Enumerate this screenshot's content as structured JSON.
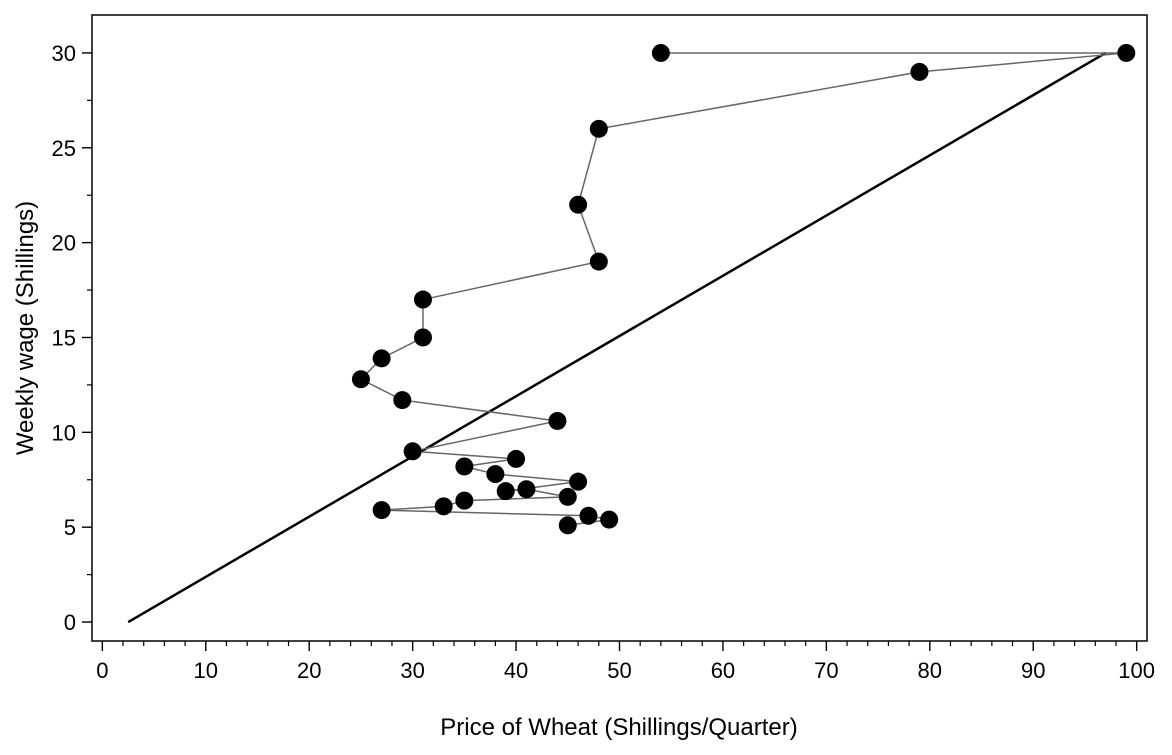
{
  "chart_data": {
    "type": "scatter",
    "xlabel": "Price of Wheat (Shillings/Quarter)",
    "ylabel": "Weekly wage (Shillings)",
    "xlim": [
      -1,
      101
    ],
    "ylim": [
      -1,
      32
    ],
    "x_ticks": [
      0,
      10,
      20,
      30,
      40,
      50,
      60,
      70,
      80,
      90,
      100
    ],
    "y_ticks": [
      0,
      5,
      10,
      15,
      20,
      25,
      30
    ],
    "x_minor_step": 2,
    "y_minor_step": 2.5,
    "grid": false,
    "points": [
      {
        "x": 45,
        "y": 5.1
      },
      {
        "x": 49,
        "y": 5.4
      },
      {
        "x": 47,
        "y": 5.6
      },
      {
        "x": 27,
        "y": 5.9
      },
      {
        "x": 33,
        "y": 6.1
      },
      {
        "x": 35,
        "y": 6.4
      },
      {
        "x": 45,
        "y": 6.6
      },
      {
        "x": 41,
        "y": 7.0
      },
      {
        "x": 39,
        "y": 6.9
      },
      {
        "x": 46,
        "y": 7.4
      },
      {
        "x": 38,
        "y": 7.8
      },
      {
        "x": 35,
        "y": 8.2
      },
      {
        "x": 40,
        "y": 8.6
      },
      {
        "x": 30,
        "y": 9.0
      },
      {
        "x": 44,
        "y": 10.6
      },
      {
        "x": 29,
        "y": 11.7
      },
      {
        "x": 25,
        "y": 12.8
      },
      {
        "x": 27,
        "y": 13.9
      },
      {
        "x": 31,
        "y": 15.0
      },
      {
        "x": 31,
        "y": 17.0
      },
      {
        "x": 48,
        "y": 19.0
      },
      {
        "x": 46,
        "y": 22.0
      },
      {
        "x": 48,
        "y": 26.0
      },
      {
        "x": 79,
        "y": 29.0
      },
      {
        "x": 99,
        "y": 30.0
      },
      {
        "x": 54,
        "y": 30.0
      }
    ],
    "reference_line": {
      "x": [
        2.5,
        97
      ],
      "y": [
        0,
        30
      ]
    },
    "colors": {
      "points": "#000000",
      "connector": "#666666",
      "reference_line": "#000000",
      "frame": "#000000"
    }
  }
}
